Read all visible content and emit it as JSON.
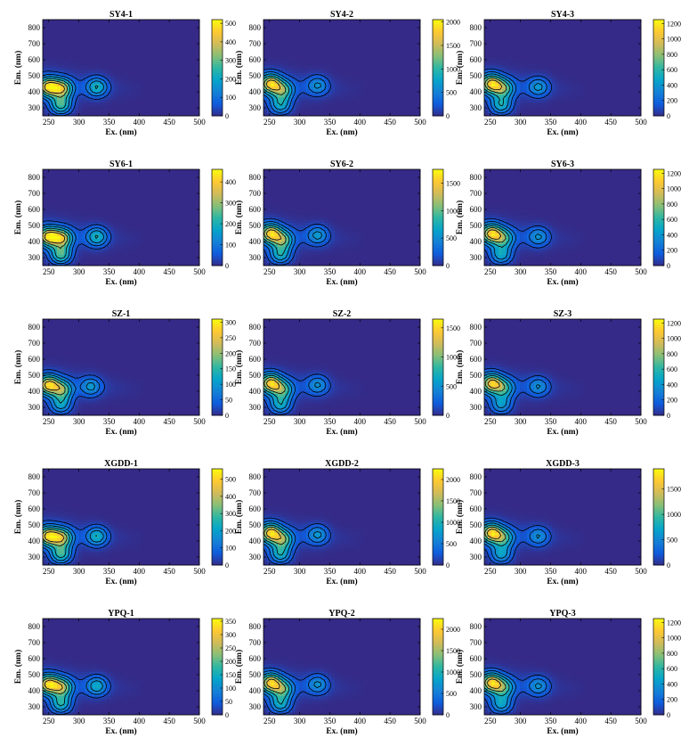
{
  "figure": {
    "chart_type": "heatmap",
    "colormap": "parula",
    "colormap_stops": [
      "#352a87",
      "#0f5cdd",
      "#1481d6",
      "#06a4ca",
      "#2eb7a4",
      "#87bf77",
      "#d1bb59",
      "#fec832",
      "#f9fb0e"
    ]
  },
  "chart_data": [
    {
      "type": "heatmap",
      "title": "SY4-1",
      "xlabel": "Ex. (nm)",
      "ylabel": "Em. (nm)",
      "xlim": [
        240,
        500
      ],
      "ylim": [
        250,
        850
      ],
      "xticks": [
        250,
        300,
        350,
        400,
        450,
        500
      ],
      "yticks": [
        300,
        400,
        500,
        600,
        700,
        800
      ],
      "colorbar": {
        "range": [
          0,
          520
        ],
        "ticks": [
          0,
          100,
          200,
          300,
          400,
          500
        ]
      },
      "peaks": [
        {
          "ex": 250,
          "em": 430,
          "value": 510
        },
        {
          "ex": 272,
          "em": 420,
          "value": 420
        },
        {
          "ex": 270,
          "em": 320,
          "value": 330
        },
        {
          "ex": 330,
          "em": 430,
          "value": 260
        }
      ]
    },
    {
      "type": "heatmap",
      "title": "SY4-2",
      "xlabel": "Ex. (nm)",
      "ylabel": "Em. (nm)",
      "xlim": [
        240,
        500
      ],
      "ylim": [
        250,
        850
      ],
      "xticks": [
        250,
        300,
        350,
        400,
        450,
        500
      ],
      "yticks": [
        300,
        400,
        500,
        600,
        700,
        800
      ],
      "colorbar": {
        "range": [
          0,
          2050
        ],
        "ticks": [
          0,
          500,
          1000,
          1500,
          2000
        ]
      },
      "peaks": [
        {
          "ex": 252,
          "em": 450,
          "value": 2000
        },
        {
          "ex": 272,
          "em": 410,
          "value": 1250
        },
        {
          "ex": 268,
          "em": 320,
          "value": 1000
        },
        {
          "ex": 330,
          "em": 440,
          "value": 700
        }
      ]
    },
    {
      "type": "heatmap",
      "title": "SY4-3",
      "xlabel": "Ex. (nm)",
      "ylabel": "Em. (nm)",
      "xlim": [
        240,
        500
      ],
      "ylim": [
        250,
        850
      ],
      "xticks": [
        250,
        300,
        350,
        400,
        450,
        500
      ],
      "yticks": [
        300,
        400,
        500,
        600,
        700,
        800
      ],
      "colorbar": {
        "range": [
          0,
          1250
        ],
        "ticks": [
          0,
          200,
          400,
          600,
          800,
          1000,
          1200
        ]
      },
      "peaks": [
        {
          "ex": 252,
          "em": 450,
          "value": 1200
        },
        {
          "ex": 272,
          "em": 420,
          "value": 750
        },
        {
          "ex": 268,
          "em": 320,
          "value": 650
        },
        {
          "ex": 330,
          "em": 430,
          "value": 450
        }
      ]
    },
    {
      "type": "heatmap",
      "title": "SY6-1",
      "xlabel": "Ex. (nm)",
      "ylabel": "Em. (nm)",
      "xlim": [
        240,
        500
      ],
      "ylim": [
        250,
        850
      ],
      "xticks": [
        250,
        300,
        350,
        400,
        450,
        500
      ],
      "yticks": [
        300,
        400,
        500,
        600,
        700,
        800
      ],
      "colorbar": {
        "range": [
          0,
          460
        ],
        "ticks": [
          0,
          100,
          200,
          300,
          400
        ]
      },
      "peaks": [
        {
          "ex": 250,
          "em": 430,
          "value": 450
        },
        {
          "ex": 272,
          "em": 420,
          "value": 380
        },
        {
          "ex": 270,
          "em": 320,
          "value": 300
        },
        {
          "ex": 330,
          "em": 430,
          "value": 230
        }
      ]
    },
    {
      "type": "heatmap",
      "title": "SY6-2",
      "xlabel": "Ex. (nm)",
      "ylabel": "Em. (nm)",
      "xlim": [
        240,
        500
      ],
      "ylim": [
        250,
        850
      ],
      "xticks": [
        250,
        300,
        350,
        400,
        450,
        500
      ],
      "yticks": [
        300,
        400,
        500,
        600,
        700,
        800
      ],
      "colorbar": {
        "range": [
          0,
          1750
        ],
        "ticks": [
          0,
          500,
          1000,
          1500
        ]
      },
      "peaks": [
        {
          "ex": 252,
          "em": 450,
          "value": 1700
        },
        {
          "ex": 272,
          "em": 410,
          "value": 1100
        },
        {
          "ex": 268,
          "em": 320,
          "value": 900
        },
        {
          "ex": 330,
          "em": 440,
          "value": 650
        }
      ]
    },
    {
      "type": "heatmap",
      "title": "SY6-3",
      "xlabel": "Ex. (nm)",
      "ylabel": "Em. (nm)",
      "xlim": [
        240,
        500
      ],
      "ylim": [
        250,
        850
      ],
      "xticks": [
        250,
        300,
        350,
        400,
        450,
        500
      ],
      "yticks": [
        300,
        400,
        500,
        600,
        700,
        800
      ],
      "colorbar": {
        "range": [
          0,
          1250
        ],
        "ticks": [
          0,
          200,
          400,
          600,
          800,
          1000,
          1200
        ]
      },
      "peaks": [
        {
          "ex": 252,
          "em": 450,
          "value": 1200
        },
        {
          "ex": 272,
          "em": 420,
          "value": 700
        },
        {
          "ex": 268,
          "em": 320,
          "value": 600
        },
        {
          "ex": 330,
          "em": 430,
          "value": 420
        }
      ]
    },
    {
      "type": "heatmap",
      "title": "SZ-1",
      "xlabel": "Ex. (nm)",
      "ylabel": "Em. (nm)",
      "xlim": [
        240,
        500
      ],
      "ylim": [
        250,
        850
      ],
      "xticks": [
        250,
        300,
        350,
        400,
        450,
        500
      ],
      "yticks": [
        300,
        400,
        500,
        600,
        700,
        800
      ],
      "colorbar": {
        "range": [
          0,
          310
        ],
        "ticks": [
          0,
          50,
          100,
          150,
          200,
          250,
          300
        ]
      },
      "peaks": [
        {
          "ex": 250,
          "em": 440,
          "value": 300
        },
        {
          "ex": 272,
          "em": 410,
          "value": 200
        },
        {
          "ex": 270,
          "em": 320,
          "value": 140
        },
        {
          "ex": 320,
          "em": 430,
          "value": 110
        }
      ]
    },
    {
      "type": "heatmap",
      "title": "SZ-2",
      "xlabel": "Ex. (nm)",
      "ylabel": "Em. (nm)",
      "xlim": [
        240,
        500
      ],
      "ylim": [
        250,
        850
      ],
      "xticks": [
        250,
        300,
        350,
        400,
        450,
        500
      ],
      "yticks": [
        300,
        400,
        500,
        600,
        700,
        800
      ],
      "colorbar": {
        "range": [
          0,
          1650
        ],
        "ticks": [
          0,
          500,
          1000,
          1500
        ]
      },
      "peaks": [
        {
          "ex": 252,
          "em": 450,
          "value": 1600
        },
        {
          "ex": 272,
          "em": 410,
          "value": 950
        },
        {
          "ex": 268,
          "em": 320,
          "value": 800
        },
        {
          "ex": 330,
          "em": 440,
          "value": 550
        }
      ]
    },
    {
      "type": "heatmap",
      "title": "SZ-3",
      "xlabel": "Ex. (nm)",
      "ylabel": "Em. (nm)",
      "xlim": [
        240,
        500
      ],
      "ylim": [
        250,
        850
      ],
      "xticks": [
        250,
        300,
        350,
        400,
        450,
        500
      ],
      "yticks": [
        300,
        400,
        500,
        600,
        700,
        800
      ],
      "colorbar": {
        "range": [
          0,
          1250
        ],
        "ticks": [
          0,
          200,
          400,
          600,
          800,
          1000,
          1200
        ]
      },
      "peaks": [
        {
          "ex": 252,
          "em": 450,
          "value": 1150
        },
        {
          "ex": 272,
          "em": 420,
          "value": 650
        },
        {
          "ex": 268,
          "em": 320,
          "value": 520
        },
        {
          "ex": 330,
          "em": 430,
          "value": 400
        }
      ]
    },
    {
      "type": "heatmap",
      "title": "XGDD-1",
      "xlabel": "Ex. (nm)",
      "ylabel": "Em. (nm)",
      "xlim": [
        240,
        500
      ],
      "ylim": [
        250,
        850
      ],
      "xticks": [
        250,
        300,
        350,
        400,
        450,
        500
      ],
      "yticks": [
        300,
        400,
        500,
        600,
        700,
        800
      ],
      "colorbar": {
        "range": [
          0,
          560
        ],
        "ticks": [
          0,
          100,
          200,
          300,
          400,
          500
        ]
      },
      "peaks": [
        {
          "ex": 250,
          "em": 430,
          "value": 540
        },
        {
          "ex": 272,
          "em": 420,
          "value": 430
        },
        {
          "ex": 270,
          "em": 320,
          "value": 350
        },
        {
          "ex": 330,
          "em": 430,
          "value": 270
        }
      ]
    },
    {
      "type": "heatmap",
      "title": "XGDD-2",
      "xlabel": "Ex. (nm)",
      "ylabel": "Em. (nm)",
      "xlim": [
        240,
        500
      ],
      "ylim": [
        250,
        850
      ],
      "xticks": [
        250,
        300,
        350,
        400,
        450,
        500
      ],
      "yticks": [
        300,
        400,
        500,
        600,
        700,
        800
      ],
      "colorbar": {
        "range": [
          0,
          2250
        ],
        "ticks": [
          0,
          500,
          1000,
          1500,
          2000
        ]
      },
      "peaks": [
        {
          "ex": 252,
          "em": 450,
          "value": 2200
        },
        {
          "ex": 272,
          "em": 410,
          "value": 1400
        },
        {
          "ex": 268,
          "em": 320,
          "value": 1150
        },
        {
          "ex": 330,
          "em": 440,
          "value": 800
        }
      ]
    },
    {
      "type": "heatmap",
      "title": "XGDD-3",
      "xlabel": "Ex. (nm)",
      "ylabel": "Em. (nm)",
      "xlim": [
        240,
        500
      ],
      "ylim": [
        250,
        850
      ],
      "xticks": [
        250,
        300,
        350,
        400,
        450,
        500
      ],
      "yticks": [
        300,
        400,
        500,
        600,
        700,
        800
      ],
      "colorbar": {
        "range": [
          0,
          1900
        ],
        "ticks": [
          0,
          500,
          1000,
          1500
        ]
      },
      "peaks": [
        {
          "ex": 252,
          "em": 450,
          "value": 1850
        },
        {
          "ex": 272,
          "em": 420,
          "value": 1050
        },
        {
          "ex": 268,
          "em": 320,
          "value": 850
        },
        {
          "ex": 330,
          "em": 430,
          "value": 600
        }
      ]
    },
    {
      "type": "heatmap",
      "title": "YPQ-1",
      "xlabel": "Ex. (nm)",
      "ylabel": "Em. (nm)",
      "xlim": [
        240,
        500
      ],
      "ylim": [
        250,
        850
      ],
      "xticks": [
        250,
        300,
        350,
        400,
        450,
        500
      ],
      "yticks": [
        300,
        400,
        500,
        600,
        700,
        800
      ],
      "colorbar": {
        "range": [
          0,
          360
        ],
        "ticks": [
          0,
          50,
          100,
          150,
          200,
          250,
          300,
          350
        ]
      },
      "peaks": [
        {
          "ex": 250,
          "em": 440,
          "value": 350
        },
        {
          "ex": 272,
          "em": 420,
          "value": 260
        },
        {
          "ex": 270,
          "em": 320,
          "value": 200
        },
        {
          "ex": 330,
          "em": 430,
          "value": 160
        }
      ]
    },
    {
      "type": "heatmap",
      "title": "YPQ-2",
      "xlabel": "Ex. (nm)",
      "ylabel": "Em. (nm)",
      "xlim": [
        240,
        500
      ],
      "ylim": [
        250,
        850
      ],
      "xticks": [
        250,
        300,
        350,
        400,
        450,
        500
      ],
      "yticks": [
        300,
        400,
        500,
        600,
        700,
        800
      ],
      "colorbar": {
        "range": [
          0,
          2250
        ],
        "ticks": [
          0,
          500,
          1000,
          1500,
          2000
        ]
      },
      "peaks": [
        {
          "ex": 252,
          "em": 450,
          "value": 2150
        },
        {
          "ex": 272,
          "em": 410,
          "value": 1350
        },
        {
          "ex": 268,
          "em": 320,
          "value": 1100
        },
        {
          "ex": 330,
          "em": 440,
          "value": 780
        }
      ]
    },
    {
      "type": "heatmap",
      "title": "YPQ-3",
      "xlabel": "Ex. (nm)",
      "ylabel": "Em. (nm)",
      "xlim": [
        240,
        500
      ],
      "ylim": [
        250,
        850
      ],
      "xticks": [
        250,
        300,
        350,
        400,
        450,
        500
      ],
      "yticks": [
        300,
        400,
        500,
        600,
        700,
        800
      ],
      "colorbar": {
        "range": [
          0,
          1250
        ],
        "ticks": [
          0,
          200,
          400,
          600,
          800,
          1000,
          1200
        ]
      },
      "peaks": [
        {
          "ex": 252,
          "em": 450,
          "value": 1200
        },
        {
          "ex": 272,
          "em": 420,
          "value": 700
        },
        {
          "ex": 268,
          "em": 320,
          "value": 580
        },
        {
          "ex": 330,
          "em": 430,
          "value": 420
        }
      ]
    }
  ]
}
